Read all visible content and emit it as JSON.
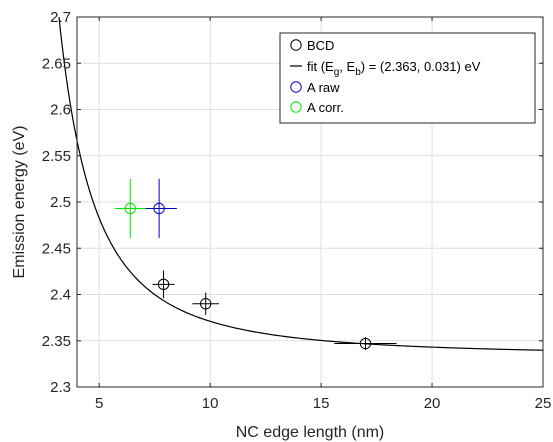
{
  "chart_data": {
    "type": "scatter",
    "title": "",
    "xlabel": "NC edge length (nm)",
    "ylabel": "Emission energy (eV)",
    "xlim": [
      4,
      25
    ],
    "ylim": [
      2.3,
      2.7
    ],
    "grid": true,
    "legend_position": "top-right",
    "x_ticks": [
      5,
      10,
      15,
      20,
      25
    ],
    "y_ticks": [
      2.3,
      2.35,
      2.4,
      2.45,
      2.5,
      2.55,
      2.6,
      2.65,
      2.7
    ],
    "x_tick_labels": [
      "5",
      "10",
      "15",
      "20",
      "25"
    ],
    "y_tick_labels": [
      "2.3",
      "2.35",
      "2.4",
      "2.45",
      "2.5",
      "2.55",
      "2.6",
      "2.65",
      "2.7"
    ],
    "series": [
      {
        "name": "BCD",
        "kind": "points",
        "color": "#000000",
        "points": [
          {
            "x": 7.9,
            "y": 2.411,
            "xerr": 0.5,
            "yerr": 0.015
          },
          {
            "x": 9.8,
            "y": 2.39,
            "xerr": 0.6,
            "yerr": 0.012
          },
          {
            "x": 17.0,
            "y": 2.347,
            "xerr": 1.4,
            "yerr": 0.007
          }
        ]
      },
      {
        "name": "fit (E_g, E_b) = (2.363, 0.031) eV",
        "kind": "line",
        "color": "#000000",
        "model": {
          "a": 2.3338,
          "b": 3.72
        }
      },
      {
        "name": "A raw",
        "kind": "points",
        "color": "#0000c8",
        "points": [
          {
            "x": 7.7,
            "y": 2.493,
            "xerr": 0.8,
            "yerr": 0.032
          }
        ]
      },
      {
        "name": "A corr.",
        "kind": "points",
        "color": "#00e600",
        "points": [
          {
            "x": 6.4,
            "y": 2.493,
            "xerr": 0.7,
            "yerr": 0.032
          }
        ]
      }
    ],
    "legend": {
      "entries": [
        {
          "marker": "circle",
          "color": "#000000",
          "label": "BCD"
        },
        {
          "marker": "line",
          "color": "#000000",
          "label_prefix": "fit (E",
          "sub1": "g",
          "label_mid": ", E",
          "sub2": "b",
          "label_suffix": ") = (2.363, 0.031) eV"
        },
        {
          "marker": "circle",
          "color": "#0000c8",
          "label": "A raw"
        },
        {
          "marker": "circle",
          "color": "#00e600",
          "label": "A corr."
        }
      ]
    }
  }
}
